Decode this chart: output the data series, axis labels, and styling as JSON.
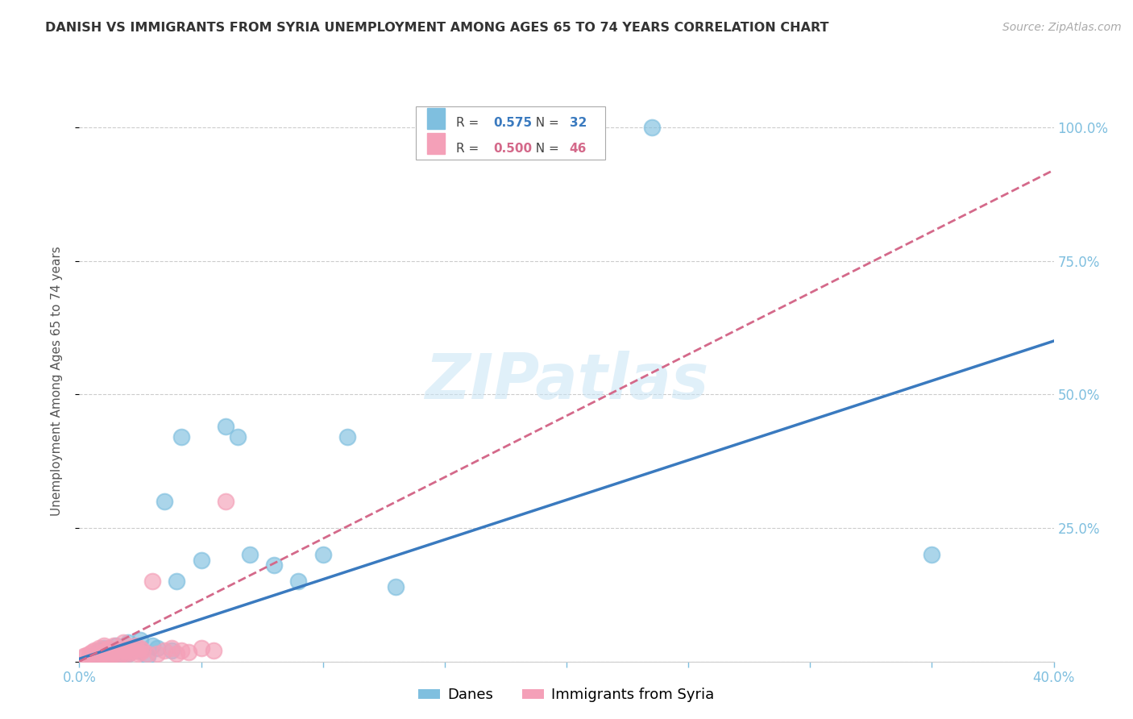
{
  "title": "DANISH VS IMMIGRANTS FROM SYRIA UNEMPLOYMENT AMONG AGES 65 TO 74 YEARS CORRELATION CHART",
  "source": "Source: ZipAtlas.com",
  "ylabel": "Unemployment Among Ages 65 to 74 years",
  "xlim": [
    0.0,
    0.4
  ],
  "ylim": [
    0.0,
    1.05
  ],
  "x_ticks": [
    0.0,
    0.05,
    0.1,
    0.15,
    0.2,
    0.25,
    0.3,
    0.35,
    0.4
  ],
  "y_ticks": [
    0.0,
    0.25,
    0.5,
    0.75,
    1.0
  ],
  "y_tick_labels_right": [
    "",
    "25.0%",
    "50.0%",
    "75.0%",
    "100.0%"
  ],
  "danes_color": "#7fbfdf",
  "denmark_line_color": "#3a7abf",
  "syria_color": "#f4a0b8",
  "syria_line_color": "#d4698a",
  "danes_R": 0.575,
  "danes_N": 32,
  "syria_R": 0.5,
  "syria_N": 46,
  "background_color": "#ffffff",
  "grid_color": "#cccccc",
  "watermark": "ZIPatlas",
  "axis_label_color": "#7fbfdf",
  "danes_line_x0": 0.0,
  "danes_line_y0": 0.005,
  "danes_line_x1": 0.4,
  "danes_line_y1": 0.6,
  "syria_line_x0": 0.0,
  "syria_line_y0": 0.0,
  "syria_line_x1": 0.4,
  "syria_line_y1": 0.92,
  "danes_points_x": [
    0.005,
    0.007,
    0.008,
    0.01,
    0.012,
    0.014,
    0.015,
    0.016,
    0.018,
    0.02,
    0.02,
    0.022,
    0.025,
    0.025,
    0.028,
    0.03,
    0.032,
    0.035,
    0.038,
    0.04,
    0.042,
    0.05,
    0.06,
    0.065,
    0.07,
    0.08,
    0.09,
    0.1,
    0.11,
    0.13,
    0.35,
    0.235
  ],
  "danes_points_y": [
    0.01,
    0.015,
    0.02,
    0.025,
    0.018,
    0.012,
    0.03,
    0.008,
    0.022,
    0.015,
    0.035,
    0.025,
    0.02,
    0.04,
    0.01,
    0.03,
    0.025,
    0.3,
    0.02,
    0.15,
    0.42,
    0.19,
    0.44,
    0.42,
    0.2,
    0.18,
    0.15,
    0.2,
    0.42,
    0.14,
    0.2,
    1.0
  ],
  "syria_points_x": [
    0.002,
    0.003,
    0.004,
    0.005,
    0.005,
    0.006,
    0.007,
    0.008,
    0.008,
    0.009,
    0.01,
    0.01,
    0.011,
    0.011,
    0.012,
    0.012,
    0.013,
    0.014,
    0.014,
    0.015,
    0.015,
    0.016,
    0.017,
    0.018,
    0.018,
    0.019,
    0.02,
    0.02,
    0.021,
    0.022,
    0.023,
    0.024,
    0.025,
    0.025,
    0.026,
    0.028,
    0.03,
    0.032,
    0.035,
    0.038,
    0.04,
    0.042,
    0.045,
    0.05,
    0.055,
    0.06
  ],
  "syria_points_y": [
    0.01,
    0.012,
    0.015,
    0.008,
    0.018,
    0.02,
    0.01,
    0.012,
    0.025,
    0.015,
    0.018,
    0.03,
    0.01,
    0.022,
    0.015,
    0.025,
    0.012,
    0.018,
    0.03,
    0.015,
    0.02,
    0.01,
    0.025,
    0.015,
    0.035,
    0.02,
    0.015,
    0.025,
    0.018,
    0.02,
    0.03,
    0.015,
    0.018,
    0.025,
    0.02,
    0.015,
    0.15,
    0.015,
    0.02,
    0.025,
    0.015,
    0.02,
    0.018,
    0.025,
    0.02,
    0.3
  ]
}
